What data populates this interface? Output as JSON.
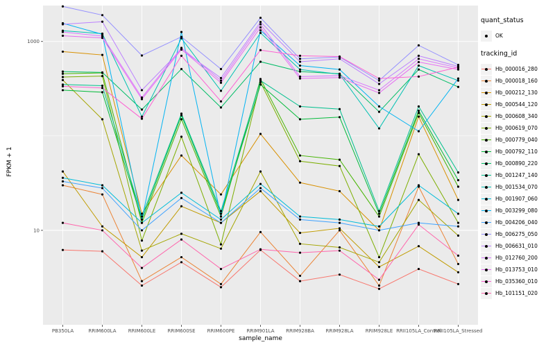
{
  "figure": {
    "background": "#FFFFFF",
    "panel_background": "#EBEBEB",
    "grid_color": "#FFFFFF",
    "point_color": "#000000",
    "tick_label_color": "#4D4D4D"
  },
  "axes": {
    "x_title": "sample_name",
    "y_title": "FPKM + 1",
    "y_ticks": [
      {
        "value": 1000,
        "label": "1000"
      },
      {
        "value": 10,
        "label": "10"
      }
    ],
    "y_minor": [
      100
    ]
  },
  "legend": {
    "quant_status_title": "quant_status",
    "quant_status_items": [
      {
        "label": "OK",
        "symbol": "point"
      }
    ],
    "tracking_title": "tracking_id"
  },
  "chart_data": {
    "type": "line",
    "title": "",
    "xlabel": "sample_name",
    "ylabel": "FPKM + 1",
    "y_scale": "log10",
    "ylim": [
      1,
      2400
    ],
    "grid": true,
    "legend_position": "right",
    "point_marker": "black dot at every sample for every series",
    "categories": [
      "PB350LA",
      "RRIM600LA",
      "RRIM600LE",
      "RRIM600SE",
      "RRIM600PE",
      "RRIM901LA",
      "RRIM928BA",
      "RRIM928LA",
      "RRIM928LE",
      "RRII105LA_Control",
      "RRII105LA_Stressed"
    ],
    "series": [
      {
        "name": "Hb_000016_280",
        "color": "#F8766D",
        "values": [
          6.2,
          6.0,
          2.6,
          4.6,
          2.5,
          6.2,
          2.9,
          3.4,
          2.4,
          3.9,
          2.7
        ]
      },
      {
        "name": "Hb_000018_160",
        "color": "#EB8335",
        "values": [
          30,
          24,
          2.9,
          5.2,
          2.7,
          9.6,
          3.3,
          10,
          2.6,
          29,
          4.4
        ]
      },
      {
        "name": "Hb_000212_130",
        "color": "#D89000",
        "values": [
          780,
          720,
          15,
          62,
          24,
          105,
          32,
          26,
          10,
          160,
          21
        ]
      },
      {
        "name": "Hb_000544_120",
        "color": "#C09B00",
        "values": [
          42,
          11,
          5.2,
          18,
          12,
          26,
          9.4,
          10.5,
          4.1,
          6.8,
          3.6
        ]
      },
      {
        "name": "Hb_000608_340",
        "color": "#A4A500",
        "values": [
          390,
          150,
          6.1,
          9.2,
          6.4,
          42,
          7.2,
          6.6,
          4.6,
          21,
          8.8
        ]
      },
      {
        "name": "Hb_000619_070",
        "color": "#7CAE00",
        "values": [
          420,
          430,
          7.8,
          98,
          7.1,
          370,
          54,
          48,
          5.2,
          64,
          12
        ]
      },
      {
        "name": "Hb_000779_040",
        "color": "#45B500",
        "values": [
          455,
          465,
          12,
          150,
          14,
          400,
          62,
          56,
          14,
          175,
          29
        ]
      },
      {
        "name": "Hb_000792_110",
        "color": "#00BA38",
        "values": [
          305,
          290,
          13,
          165,
          15,
          350,
          150,
          158,
          15,
          185,
          34
        ]
      },
      {
        "name": "Hb_000890_220",
        "color": "#00BD66",
        "values": [
          480,
          470,
          190,
          510,
          200,
          610,
          480,
          455,
          180,
          505,
          330
        ]
      },
      {
        "name": "Hb_001247_140",
        "color": "#00C08E",
        "values": [
          350,
          340,
          14,
          172,
          16,
          385,
          205,
          192,
          16,
          205,
          41
        ]
      },
      {
        "name": "Hb_001534_070",
        "color": "#00C1B2",
        "values": [
          1300,
          1210,
          160,
          1080,
          300,
          1230,
          505,
          450,
          120,
          555,
          385
        ]
      },
      {
        "name": "Hb_001907_060",
        "color": "#00BCD9",
        "values": [
          36,
          30,
          12,
          25,
          13,
          31,
          14,
          13,
          11,
          30,
          15
        ]
      },
      {
        "name": "Hb_003299_080",
        "color": "#00B3F2",
        "values": [
          1560,
          1190,
          13,
          1260,
          14,
          1310,
          555,
          505,
          205,
          112,
          405
        ]
      },
      {
        "name": "Hb_004206_040",
        "color": "#3FA2FF",
        "values": [
          33,
          28,
          10,
          22,
          12,
          28,
          13,
          12,
          10,
          12,
          11
        ]
      },
      {
        "name": "Hb_006275_050",
        "color": "#9590FF",
        "values": [
          2350,
          1900,
          710,
          1120,
          510,
          1780,
          655,
          685,
          385,
          910,
          565
        ]
      },
      {
        "name": "Hb_006631_010",
        "color": "#BC81FF",
        "values": [
          1520,
          1620,
          305,
          820,
          410,
          1610,
          610,
          655,
          355,
          705,
          545
        ]
      },
      {
        "name": "Hb_012760_200",
        "color": "#D875FE",
        "values": [
          1260,
          1140,
          255,
          855,
          385,
          1520,
          425,
          435,
          305,
          655,
          525
        ]
      },
      {
        "name": "Hb_013753_010",
        "color": "#E76BF3",
        "values": [
          1150,
          1090,
          245,
          825,
          365,
          1410,
          405,
          415,
          285,
          605,
          505
        ]
      },
      {
        "name": "Hb_035360_010",
        "color": "#FD61D3",
        "values": [
          335,
          322,
          152,
          705,
          232,
          810,
          705,
          692,
          405,
          425,
          535
        ]
      },
      {
        "name": "Hb_101151_020",
        "color": "#FF65AC",
        "values": [
          12,
          10,
          4.0,
          8.0,
          3.9,
          6.3,
          5.8,
          6.1,
          3.0,
          11.5,
          5.4
        ]
      }
    ]
  }
}
